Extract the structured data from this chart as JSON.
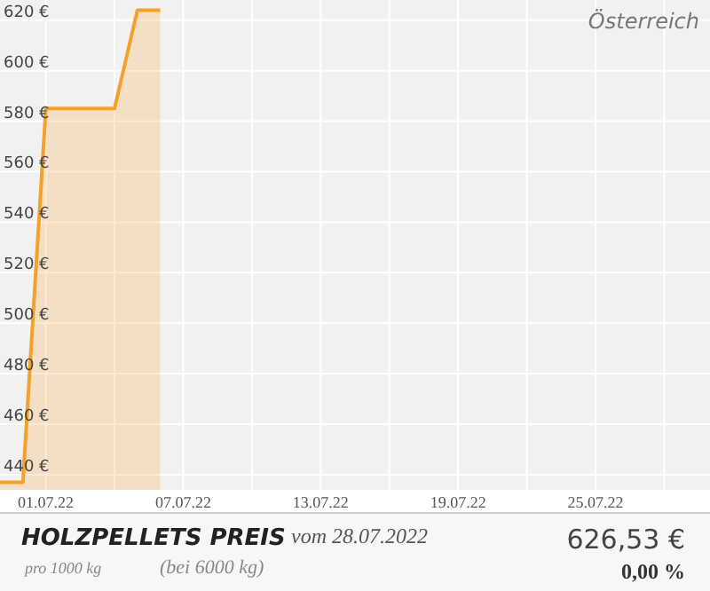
{
  "chart_data": {
    "type": "area",
    "title": "HOLZPELLETS PREIS",
    "subtitle": "vom 28.07.2022",
    "annotations": [
      "Österreich",
      "pro 1000 kg",
      "(bei 6000 kg)",
      "626,53 €",
      "0,00 %"
    ],
    "x": [
      "2022-06-29",
      "2022-06-30",
      "2022-07-01",
      "2022-07-04",
      "2022-07-05",
      "2022-07-06"
    ],
    "series": [
      {
        "color": "#f5a02a",
        "values": [
          437,
          437,
          585,
          585,
          624,
          624
        ]
      }
    ],
    "xlim": [
      "2022-06-29",
      "2022-07-30"
    ],
    "xticks": [
      {
        "value": "2022-07-01",
        "label": "01.07.22"
      },
      {
        "value": "2022-07-04",
        "label": null
      },
      {
        "value": "2022-07-07",
        "label": "07.07.22"
      },
      {
        "value": "2022-07-10",
        "label": null
      },
      {
        "value": "2022-07-13",
        "label": "13.07.22"
      },
      {
        "value": "2022-07-16",
        "label": null
      },
      {
        "value": "2022-07-19",
        "label": "19.07.22"
      },
      {
        "value": "2022-07-22",
        "label": null
      },
      {
        "value": "2022-07-25",
        "label": "25.07.22"
      },
      {
        "value": "2022-07-28",
        "label": null
      }
    ],
    "ylim": [
      434,
      628
    ],
    "yticks": [
      {
        "value": 440,
        "label": "440 €"
      },
      {
        "value": 460,
        "label": "460 €"
      },
      {
        "value": 480,
        "label": "480 €"
      },
      {
        "value": 500,
        "label": "500 €"
      },
      {
        "value": 520,
        "label": "520 €"
      },
      {
        "value": 540,
        "label": "540 €"
      },
      {
        "value": 560,
        "label": "560 €"
      },
      {
        "value": 580,
        "label": "580 €"
      },
      {
        "value": 600,
        "label": "600 €"
      },
      {
        "value": 620,
        "label": "620 €"
      }
    ],
    "grid": true
  }
}
